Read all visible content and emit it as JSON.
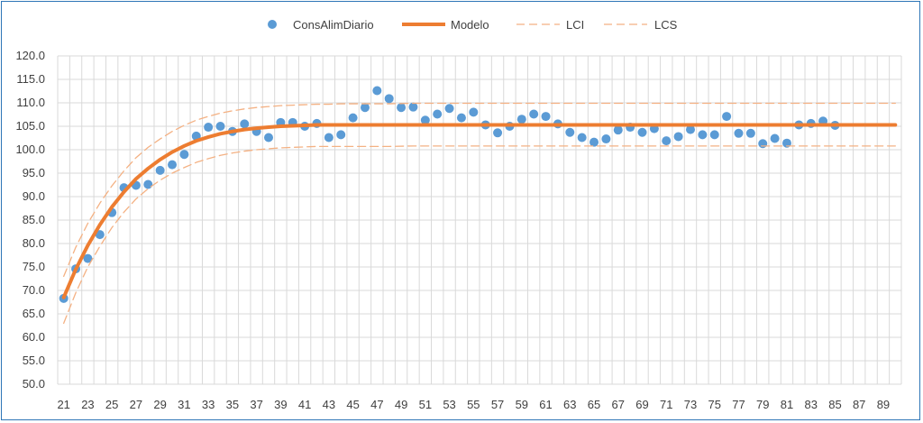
{
  "chart_data": {
    "type": "scatter",
    "title": "",
    "xlabel": "",
    "ylabel": "",
    "xlim": [
      21,
      90
    ],
    "ylim": [
      50,
      120
    ],
    "y_tick_step": 5,
    "x_tick_labels": [
      "21",
      "23",
      "25",
      "27",
      "29",
      "31",
      "33",
      "35",
      "37",
      "39",
      "41",
      "43",
      "45",
      "47",
      "49",
      "51",
      "53",
      "55",
      "57",
      "59",
      "61",
      "63",
      "65",
      "67",
      "69",
      "71",
      "73",
      "75",
      "77",
      "79",
      "81",
      "83",
      "85",
      "87",
      "89"
    ],
    "y_tick_labels": [
      "50.0",
      "55.0",
      "60.0",
      "65.0",
      "70.0",
      "75.0",
      "80.0",
      "85.0",
      "90.0",
      "95.0",
      "100.0",
      "105.0",
      "110.0",
      "115.0",
      "120.0"
    ],
    "grid": true,
    "legend_position": "top",
    "colors": {
      "points": "#5b9bd5",
      "model": "#ed7d31",
      "bounds": "#f4b183",
      "grid": "#d9d9d9",
      "border": "#2e75b6"
    },
    "series": [
      {
        "name": "ConsAlimDiario",
        "kind": "points",
        "x": [
          21,
          22,
          23,
          24,
          25,
          26,
          27,
          28,
          29,
          30,
          31,
          32,
          33,
          34,
          35,
          36,
          37,
          38,
          39,
          40,
          41,
          42,
          43,
          44,
          45,
          46,
          47,
          48,
          49,
          50,
          51,
          52,
          53,
          54,
          55,
          56,
          57,
          58,
          59,
          60,
          61,
          62,
          63,
          64,
          65,
          66,
          67,
          68,
          69,
          70,
          71,
          72,
          73,
          74,
          75,
          76,
          77,
          78,
          79,
          80,
          81,
          82,
          83,
          84,
          85
        ],
        "y": [
          68.3,
          74.6,
          76.8,
          81.9,
          86.6,
          91.9,
          92.4,
          92.6,
          95.6,
          96.8,
          99.0,
          102.9,
          104.8,
          105.0,
          103.9,
          105.5,
          103.9,
          102.6,
          105.8,
          105.8,
          105.0,
          105.6,
          102.6,
          103.2,
          106.8,
          109.0,
          112.6,
          110.9,
          109.0,
          109.1,
          106.3,
          107.6,
          108.8,
          106.8,
          108.0,
          105.3,
          103.6,
          105.0,
          106.5,
          107.6,
          107.1,
          105.5,
          103.7,
          102.6,
          101.6,
          102.3,
          104.2,
          104.8,
          103.7,
          104.5,
          101.9,
          102.8,
          104.3,
          103.2,
          103.2,
          107.1,
          103.5,
          103.5,
          101.3,
          102.4,
          101.4,
          105.3,
          105.6,
          106.1,
          105.2
        ]
      },
      {
        "name": "Modelo",
        "kind": "line",
        "x": [
          21,
          22,
          23,
          24,
          25,
          26,
          27,
          28,
          29,
          30,
          31,
          32,
          33,
          34,
          35,
          36,
          37,
          38,
          39,
          40,
          41,
          42,
          43,
          44,
          45,
          46,
          47,
          48,
          50,
          55,
          60,
          70,
          80,
          90
        ],
        "y": [
          68.5,
          74.5,
          79.6,
          84.0,
          87.8,
          91.0,
          93.8,
          96.0,
          97.9,
          99.5,
          100.8,
          101.9,
          102.7,
          103.4,
          103.9,
          104.3,
          104.6,
          104.8,
          105.0,
          105.1,
          105.2,
          105.3,
          105.3,
          105.3,
          105.3,
          105.3,
          105.3,
          105.3,
          105.3,
          105.3,
          105.3,
          105.3,
          105.3,
          105.3
        ]
      },
      {
        "name": "LCI",
        "kind": "dashed",
        "x": [
          21,
          22,
          23,
          24,
          25,
          26,
          27,
          28,
          29,
          30,
          31,
          32,
          33,
          34,
          35,
          36,
          37,
          38,
          39,
          40,
          41,
          42,
          43,
          44,
          45,
          46,
          47,
          48,
          50,
          55,
          60,
          70,
          80,
          90
        ],
        "y": [
          63.0,
          69.5,
          75.0,
          79.4,
          83.4,
          86.7,
          89.5,
          91.7,
          93.5,
          95.0,
          96.2,
          97.3,
          98.1,
          98.8,
          99.3,
          99.7,
          100.0,
          100.2,
          100.4,
          100.5,
          100.6,
          100.7,
          100.7,
          100.7,
          100.7,
          100.7,
          100.7,
          100.7,
          100.8,
          100.8,
          100.8,
          100.8,
          100.8,
          100.8
        ]
      },
      {
        "name": "LCS",
        "kind": "dashed",
        "x": [
          21,
          22,
          23,
          24,
          25,
          26,
          27,
          28,
          29,
          30,
          31,
          32,
          33,
          34,
          35,
          36,
          37,
          38,
          39,
          40,
          41,
          42,
          43,
          44,
          45,
          46,
          47,
          48,
          50,
          55,
          60,
          70,
          80,
          90
        ],
        "y": [
          73.0,
          79.2,
          84.3,
          88.6,
          92.3,
          95.5,
          98.3,
          100.5,
          102.3,
          103.9,
          105.2,
          106.3,
          107.1,
          107.8,
          108.3,
          108.7,
          109.0,
          109.2,
          109.4,
          109.5,
          109.6,
          109.7,
          109.7,
          109.8,
          109.8,
          109.8,
          109.8,
          109.8,
          109.9,
          109.9,
          109.9,
          109.9,
          109.9,
          109.9
        ]
      }
    ]
  }
}
